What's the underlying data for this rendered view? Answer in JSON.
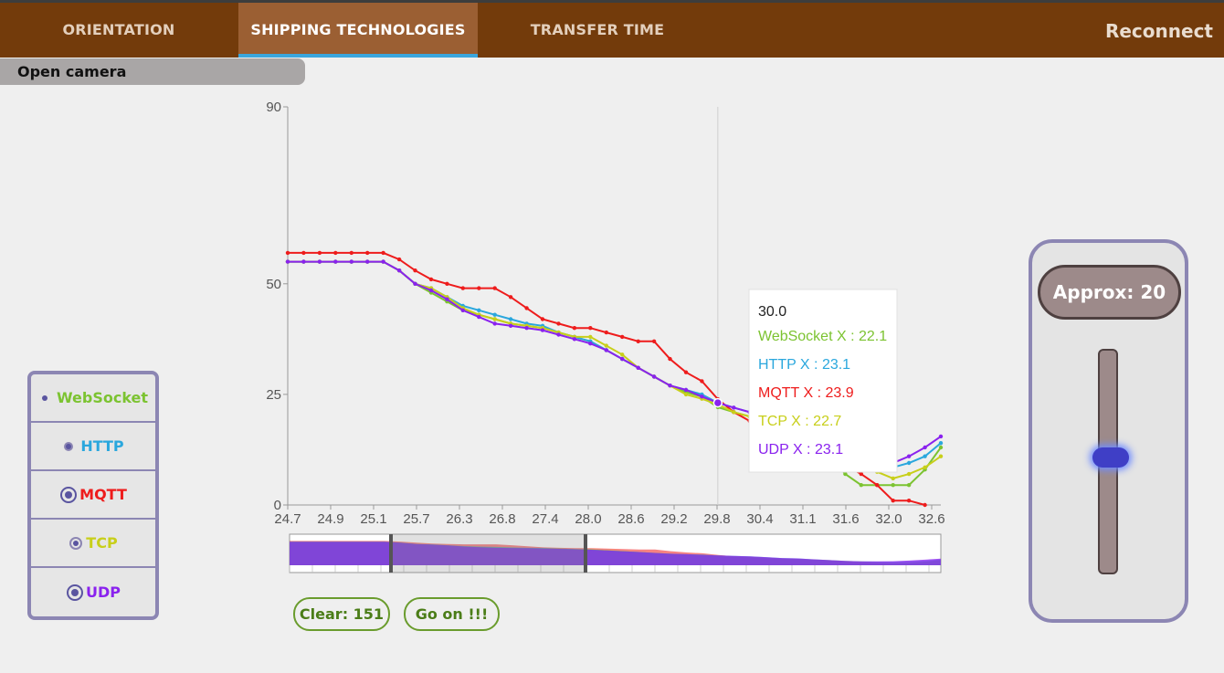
{
  "nav": {
    "tabs": [
      {
        "label": "ORIENTATION",
        "active": false
      },
      {
        "label": "SHIPPING TECHNOLOGIES",
        "active": true
      },
      {
        "label": "TRANSFER TIME",
        "active": false
      }
    ],
    "reconnect_label": "Reconnect"
  },
  "camera": {
    "label": "Open camera"
  },
  "legend": {
    "items": [
      {
        "label": "WebSocket",
        "color": "#7cc331",
        "icon": "small-dot-icon"
      },
      {
        "label": "HTTP",
        "color": "#2aa7dd",
        "icon": "medium-dot-icon"
      },
      {
        "label": "MQTT",
        "color": "#ee1c1c",
        "icon": "ring-dot-icon"
      },
      {
        "label": "TCP",
        "color": "#c8cf1a",
        "icon": "ring-dot-icon"
      },
      {
        "label": "UDP",
        "color": "#8a22ee",
        "icon": "ring-dot-icon"
      }
    ]
  },
  "buttons": {
    "clear_label": "Clear: 151",
    "go_label": "Go on !!!"
  },
  "approx": {
    "label": "Approx: 20",
    "slider_level": 0.52
  },
  "tooltip": {
    "header": "30.0",
    "lines": [
      "WebSocket X : 22.1",
      "HTTP X : 23.1",
      "MQTT X : 23.9",
      "TCP X : 22.7",
      "UDP X : 23.1"
    ]
  },
  "chart_data": {
    "type": "line",
    "x_tick_labels": [
      "24.7",
      "24.9",
      "25.1",
      "25.7",
      "26.3",
      "26.8",
      "27.4",
      "28.0",
      "28.6",
      "29.2",
      "29.8",
      "30.4",
      "31.1",
      "31.6",
      "32.0",
      "32.6"
    ],
    "y_tick_labels": [
      "0",
      "25",
      "50",
      "90"
    ],
    "ylim": [
      0,
      90
    ],
    "hover_x": "30.0",
    "series": [
      {
        "name": "WebSocket",
        "color": "#7cc331",
        "values": [
          55,
          55,
          55,
          55,
          55,
          55,
          55,
          53,
          50,
          48,
          46,
          44,
          43,
          42,
          41,
          40.5,
          40,
          39,
          38,
          37,
          35,
          33,
          31,
          29,
          27,
          25.5,
          24.5,
          22.1,
          21,
          20,
          18,
          16,
          15,
          13,
          11,
          7,
          4.5,
          4.5,
          4.5,
          4.5,
          8,
          13
        ]
      },
      {
        "name": "HTTP",
        "color": "#2aa7dd",
        "values": [
          55,
          55,
          55,
          55,
          55,
          55,
          55,
          53,
          50,
          49,
          47,
          45,
          44,
          43,
          42,
          41,
          40.5,
          39,
          38,
          37,
          35,
          33,
          31,
          29,
          27,
          26,
          25,
          23.1,
          22,
          21,
          19,
          17,
          16,
          14,
          12,
          10,
          9,
          8.5,
          8.5,
          9.5,
          11,
          14
        ]
      },
      {
        "name": "MQTT",
        "color": "#ee1c1c",
        "values": [
          57,
          57,
          57,
          57,
          57,
          57,
          57,
          55.5,
          53,
          51,
          50,
          49,
          49,
          49,
          47,
          44.5,
          42,
          41,
          40,
          40,
          39,
          38,
          37,
          37,
          33,
          30,
          28,
          23.9,
          21,
          19,
          17,
          15,
          14,
          13,
          11.5,
          9,
          7,
          4.5,
          1,
          1,
          0
        ]
      },
      {
        "name": "TCP",
        "color": "#c8cf1a",
        "values": [
          55,
          55,
          55,
          55,
          55,
          55,
          55,
          53,
          50,
          49,
          47,
          44.5,
          43,
          42,
          41,
          40.5,
          40,
          39,
          38,
          38,
          36,
          34,
          31,
          29,
          27,
          25,
          24,
          22.7,
          21,
          20,
          18,
          16,
          15,
          13.5,
          12,
          10,
          9,
          7.5,
          6,
          7,
          8.5,
          11
        ]
      },
      {
        "name": "UDP",
        "color": "#8a22ee",
        "values": [
          55,
          55,
          55,
          55,
          55,
          55,
          55,
          53,
          50,
          48.5,
          46.5,
          44,
          42.5,
          41,
          40.5,
          40,
          39.5,
          38.5,
          37.5,
          36.5,
          35,
          33,
          31,
          29,
          27,
          26,
          24.5,
          23.1,
          22,
          21,
          19,
          17,
          16,
          14,
          12,
          10,
          9,
          9,
          9.5,
          11,
          13,
          15.5
        ]
      }
    ]
  }
}
